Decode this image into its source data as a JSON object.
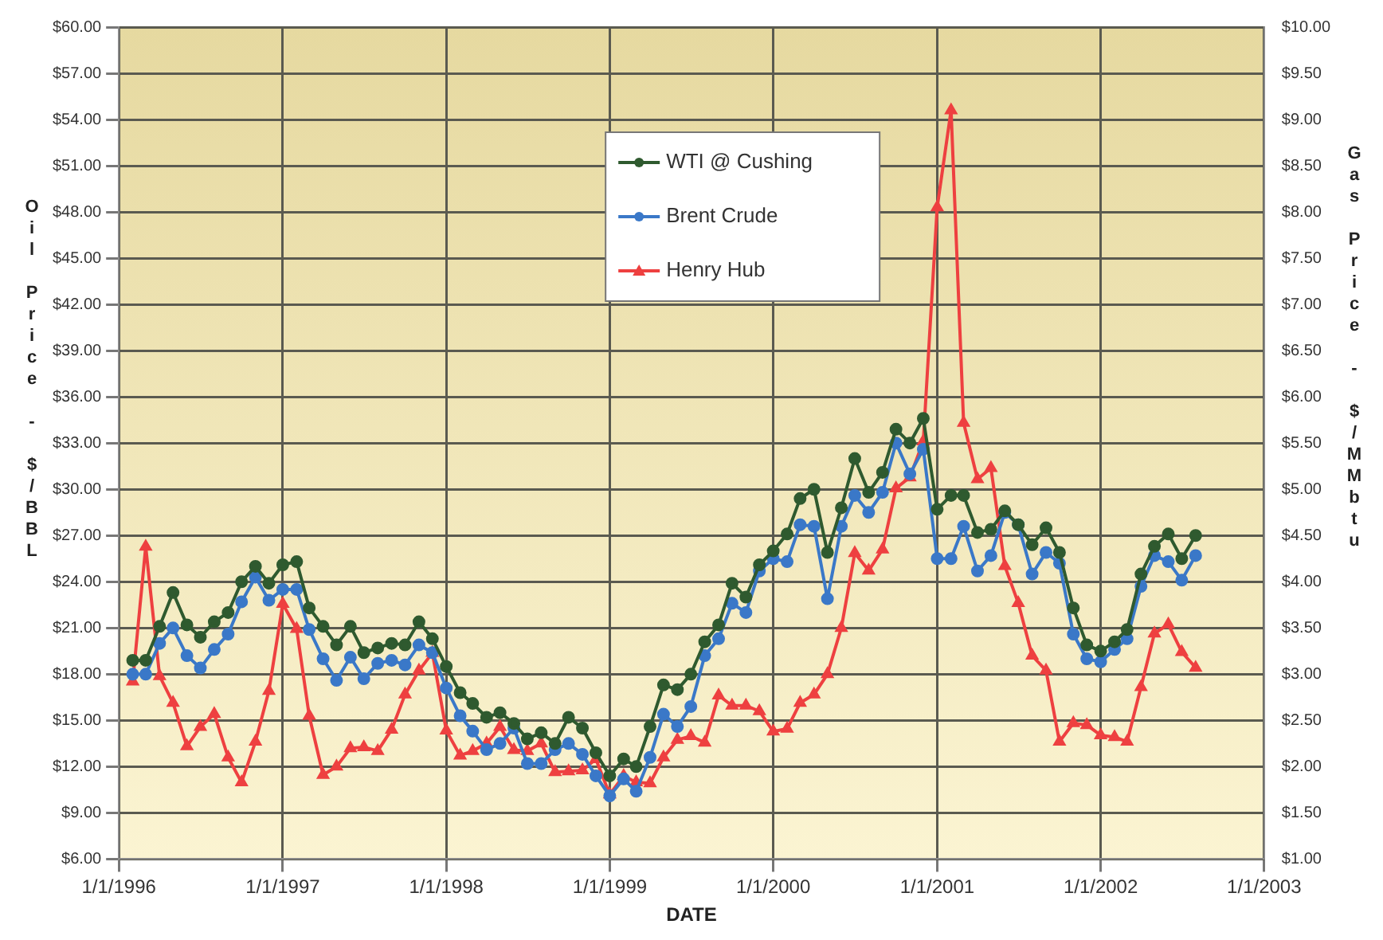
{
  "chart_data": {
    "type": "line",
    "xlabel": "DATE",
    "ylabel": "Oil Price - $/BBL",
    "y2label": "Gas Price - $/MMbtu",
    "x": [
      "1996-02",
      "1996-03",
      "1996-04",
      "1996-05",
      "1996-06",
      "1996-07",
      "1996-08",
      "1996-09",
      "1996-10",
      "1996-11",
      "1996-12",
      "1997-01",
      "1997-02",
      "1997-03",
      "1997-04",
      "1997-05",
      "1997-06",
      "1997-07",
      "1997-08",
      "1997-09",
      "1997-10",
      "1997-11",
      "1997-12",
      "1998-01",
      "1998-02",
      "1998-03",
      "1998-04",
      "1998-05",
      "1998-06",
      "1998-07",
      "1998-08",
      "1998-09",
      "1998-10",
      "1998-11",
      "1998-12",
      "1999-01",
      "1999-02",
      "1999-03",
      "1999-04",
      "1999-05",
      "1999-06",
      "1999-07",
      "1999-08",
      "1999-09",
      "1999-10",
      "1999-11",
      "1999-12",
      "2000-01",
      "2000-02",
      "2000-03",
      "2000-04",
      "2000-05",
      "2000-06",
      "2000-07",
      "2000-08",
      "2000-09",
      "2000-10",
      "2000-11",
      "2000-12",
      "2001-01",
      "2001-02",
      "2001-03",
      "2001-04",
      "2001-05",
      "2001-06",
      "2001-07",
      "2001-08",
      "2001-09",
      "2001-10",
      "2001-11",
      "2001-12",
      "2002-01",
      "2002-02",
      "2002-03",
      "2002-04",
      "2002-05",
      "2002-06",
      "2002-07",
      "2002-08"
    ],
    "series": [
      {
        "name": "WTI @ Cushing",
        "color": "#2f5a2f",
        "marker": "circle",
        "values": [
          18.9,
          18.9,
          21.1,
          23.3,
          21.2,
          20.4,
          21.4,
          22.0,
          24.0,
          25.0,
          23.9,
          25.1,
          25.3,
          22.3,
          21.1,
          19.9,
          21.1,
          19.4,
          19.7,
          20.0,
          19.9,
          21.4,
          20.3,
          18.5,
          16.8,
          16.1,
          15.2,
          15.5,
          14.8,
          13.8,
          14.2,
          13.5,
          15.2,
          14.5,
          12.9,
          11.4,
          12.5,
          12.0,
          14.6,
          17.3,
          17.0,
          18.0,
          20.1,
          21.2,
          23.9,
          23.0,
          25.1,
          26.0,
          27.1,
          29.4,
          30.0,
          25.9,
          28.8,
          32.0,
          29.8,
          31.1,
          33.9,
          33.0,
          34.6,
          28.7,
          29.6,
          29.6,
          27.2,
          27.4,
          28.6,
          27.7,
          26.4,
          27.5,
          25.9,
          22.3,
          19.9,
          19.5,
          20.1,
          20.9,
          24.5,
          26.3,
          27.1,
          25.5,
          27.0
        ]
      },
      {
        "name": "Brent Crude",
        "color": "#3a78c8",
        "marker": "circle",
        "values": [
          18.0,
          18.0,
          20.0,
          21.0,
          19.2,
          18.4,
          19.6,
          20.6,
          22.7,
          24.3,
          22.8,
          23.5,
          23.5,
          20.9,
          19.0,
          17.6,
          19.1,
          17.7,
          18.7,
          18.9,
          18.6,
          19.9,
          19.4,
          17.1,
          15.3,
          14.3,
          13.1,
          13.5,
          14.5,
          12.2,
          12.2,
          13.1,
          13.5,
          12.8,
          11.4,
          10.1,
          11.2,
          10.4,
          12.6,
          15.4,
          14.6,
          15.9,
          19.2,
          20.3,
          22.6,
          22.0,
          24.7,
          25.5,
          25.3,
          27.7,
          27.6,
          22.9,
          27.6,
          29.6,
          28.5,
          29.8,
          33.0,
          31.0,
          32.6,
          25.5,
          25.5,
          27.6,
          24.7,
          25.7,
          28.5,
          27.7,
          24.5,
          25.9,
          25.2,
          20.6,
          19.0,
          18.8,
          19.6,
          20.3,
          23.7,
          25.7,
          25.3,
          24.1,
          25.7
        ]
      },
      {
        "name": "Henry Hub",
        "color": "#ee4040",
        "marker": "triangle",
        "axis": "y2",
        "values": [
          2.92,
          4.38,
          2.98,
          2.69,
          2.22,
          2.43,
          2.57,
          2.1,
          1.83,
          2.27,
          2.82,
          3.76,
          3.49,
          2.55,
          1.91,
          2.0,
          2.2,
          2.21,
          2.17,
          2.4,
          2.78,
          3.04,
          3.23,
          2.39,
          2.12,
          2.17,
          2.25,
          2.43,
          2.18,
          2.17,
          2.25,
          1.94,
          1.95,
          1.96,
          2.08,
          1.7,
          1.9,
          1.83,
          1.82,
          2.1,
          2.29,
          2.33,
          2.26,
          2.77,
          2.66,
          2.66,
          2.6,
          2.38,
          2.41,
          2.69,
          2.78,
          3.0,
          3.5,
          4.31,
          4.12,
          4.35,
          5.01,
          5.13,
          5.52,
          8.05,
          9.1,
          5.72,
          5.11,
          5.23,
          4.17,
          3.77,
          3.2,
          3.04,
          2.27,
          2.47,
          2.45,
          2.34,
          2.32,
          2.27,
          2.86,
          3.44,
          3.54,
          3.24,
          3.07
        ]
      }
    ],
    "xlim": [
      "1996-01-01",
      "2003-01-01"
    ],
    "xticks": [
      {
        "value": "1996-01-01",
        "label": "1/1/1996"
      },
      {
        "value": "1997-01-01",
        "label": "1/1/1997"
      },
      {
        "value": "1998-01-01",
        "label": "1/1/1998"
      },
      {
        "value": "1999-01-01",
        "label": "1/1/1999"
      },
      {
        "value": "2000-01-01",
        "label": "1/1/2000"
      },
      {
        "value": "2001-01-01",
        "label": "1/1/2001"
      },
      {
        "value": "2002-01-01",
        "label": "1/1/2002"
      },
      {
        "value": "2003-01-01",
        "label": "1/1/2003"
      }
    ],
    "ylim": [
      6,
      60
    ],
    "yticks": [
      {
        "value": 6,
        "label": "$6.00"
      },
      {
        "value": 9,
        "label": "$9.00"
      },
      {
        "value": 12,
        "label": "$12.00"
      },
      {
        "value": 15,
        "label": "$15.00"
      },
      {
        "value": 18,
        "label": "$18.00"
      },
      {
        "value": 21,
        "label": "$21.00"
      },
      {
        "value": 24,
        "label": "$24.00"
      },
      {
        "value": 27,
        "label": "$27.00"
      },
      {
        "value": 30,
        "label": "$30.00"
      },
      {
        "value": 33,
        "label": "$33.00"
      },
      {
        "value": 36,
        "label": "$36.00"
      },
      {
        "value": 39,
        "label": "$39.00"
      },
      {
        "value": 42,
        "label": "$42.00"
      },
      {
        "value": 45,
        "label": "$45.00"
      },
      {
        "value": 48,
        "label": "$48.00"
      },
      {
        "value": 51,
        "label": "$51.00"
      },
      {
        "value": 54,
        "label": "$54.00"
      },
      {
        "value": 57,
        "label": "$57.00"
      },
      {
        "value": 60,
        "label": "$60.00"
      }
    ],
    "y2lim": [
      1,
      10
    ],
    "y2ticks": [
      {
        "value": 1,
        "label": "$1.00"
      },
      {
        "value": 1.5,
        "label": "$1.50"
      },
      {
        "value": 2,
        "label": "$2.00"
      },
      {
        "value": 2.5,
        "label": "$2.50"
      },
      {
        "value": 3,
        "label": "$3.00"
      },
      {
        "value": 3.5,
        "label": "$3.50"
      },
      {
        "value": 4,
        "label": "$4.00"
      },
      {
        "value": 4.5,
        "label": "$4.50"
      },
      {
        "value": 5,
        "label": "$5.00"
      },
      {
        "value": 5.5,
        "label": "$5.50"
      },
      {
        "value": 6,
        "label": "$6.00"
      },
      {
        "value": 6.5,
        "label": "$6.50"
      },
      {
        "value": 7,
        "label": "$7.00"
      },
      {
        "value": 7.5,
        "label": "$7.50"
      },
      {
        "value": 8,
        "label": "$8.00"
      },
      {
        "value": 8.5,
        "label": "$8.50"
      },
      {
        "value": 9,
        "label": "$9.00"
      },
      {
        "value": 9.5,
        "label": "$9.50"
      },
      {
        "value": 10,
        "label": "$10.00"
      }
    ],
    "grid": true,
    "legend": "top",
    "line_style": "solid"
  }
}
